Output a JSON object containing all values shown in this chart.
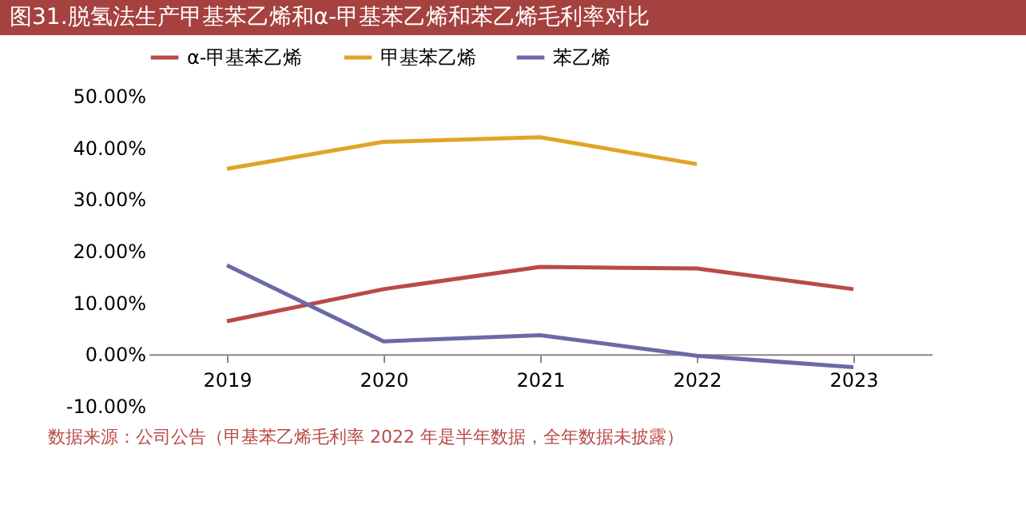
{
  "chart_data": {
    "type": "line",
    "title": "图31.脱氢法生产甲基苯乙烯和α-甲基苯乙烯和苯乙烯毛利率对比",
    "categories": [
      "2019",
      "2020",
      "2021",
      "2022",
      "2023"
    ],
    "series": [
      {
        "name": "α-甲基苯乙烯",
        "color": "#b94a48",
        "values": [
          6.4,
          12.6,
          16.9,
          16.6,
          12.6
        ]
      },
      {
        "name": "甲基苯乙烯",
        "color": "#e0a526",
        "values": [
          35.9,
          41.1,
          42.0,
          36.8,
          null
        ]
      },
      {
        "name": "苯乙烯",
        "color": "#6a6aa8",
        "values": [
          17.2,
          2.5,
          3.7,
          -0.3,
          -2.5
        ]
      }
    ],
    "ylim": [
      -10,
      50
    ],
    "yticks": [
      {
        "value": -10,
        "label": "-10.00%"
      },
      {
        "value": 0,
        "label": "0.00%"
      },
      {
        "value": 10,
        "label": "10.00%"
      },
      {
        "value": 20,
        "label": "20.00%"
      },
      {
        "value": 30,
        "label": "30.00%"
      },
      {
        "value": 40,
        "label": "40.00%"
      },
      {
        "value": 50,
        "label": "50.00%"
      }
    ],
    "legend": "top",
    "grid": false,
    "marker": "none",
    "line_style": "solid",
    "annotations": [
      "数据来源：公司公告（甲基苯乙烯毛利率 2022 年是半年数据，全年数据未披露）"
    ]
  }
}
